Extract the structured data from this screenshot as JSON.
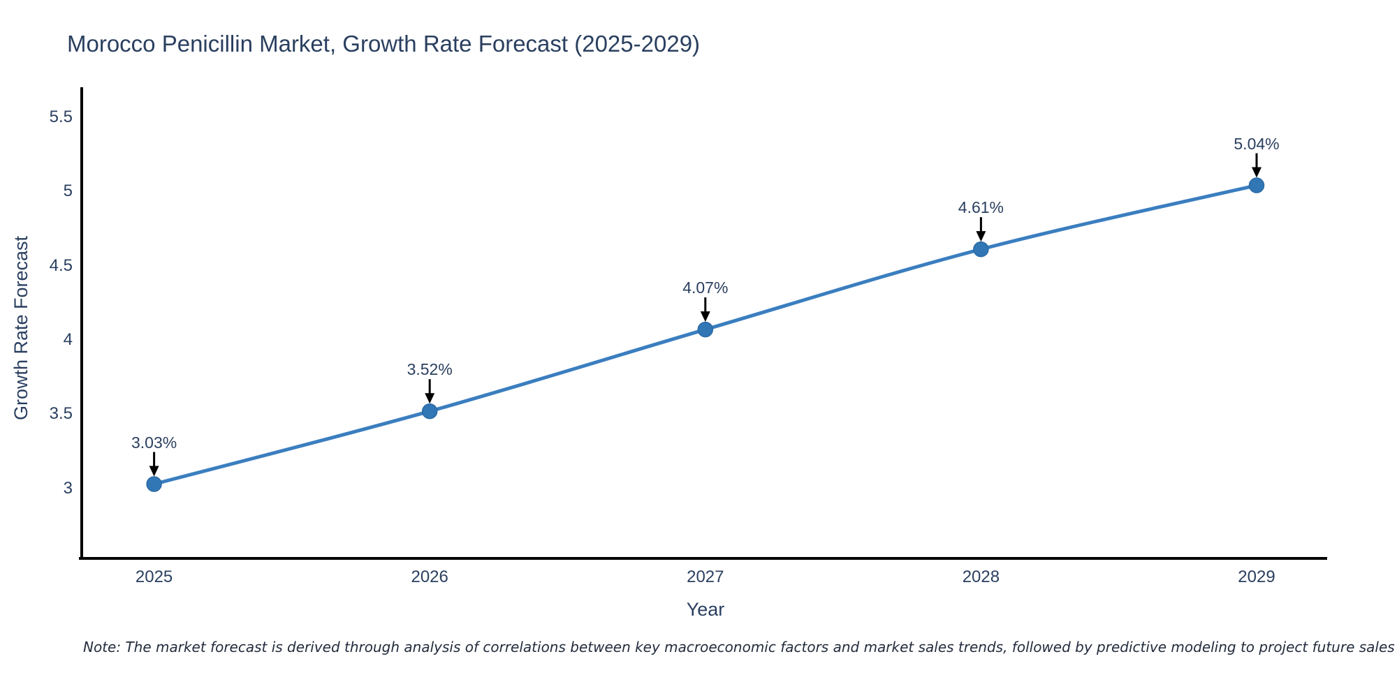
{
  "title": "Morocco Penicillin Market, Growth Rate Forecast (2025-2029)",
  "note": "Note: The market forecast is derived through analysis of correlations between key macroeconomic factors and market sales trends, followed by predictive modeling to project future sales",
  "chart_data": {
    "type": "line",
    "title": "Morocco Penicillin Market, Growth Rate Forecast (2025-2029)",
    "categories": [
      "2025",
      "2026",
      "2027",
      "2028",
      "2029"
    ],
    "series": [
      {
        "name": "Growth Rate Forecast",
        "values": [
          3.03,
          3.52,
          4.07,
          4.61,
          5.04
        ]
      }
    ],
    "point_labels": [
      "3.03%",
      "3.52%",
      "4.07%",
      "4.61%",
      "5.04%"
    ],
    "xlabel": "Year",
    "ylabel": "Growth Rate Forecast",
    "ytick_labels": [
      "3",
      "3.5",
      "4",
      "4.5",
      "5",
      "5.5"
    ],
    "ytick_values": [
      3,
      3.5,
      4,
      4.5,
      5,
      5.5
    ],
    "ylim": [
      2.53,
      5.7
    ],
    "grid": false,
    "legend_position": "none",
    "line_shape": "spline",
    "colors": {
      "line": "#3a7ebf",
      "marker": "#3277b5",
      "marker_edge": "#2a6aa5",
      "arrow": "#000000",
      "axis": "#000000",
      "text": "#2a3f5f",
      "note_text": "#232c3d",
      "background": "#ffffff"
    }
  }
}
